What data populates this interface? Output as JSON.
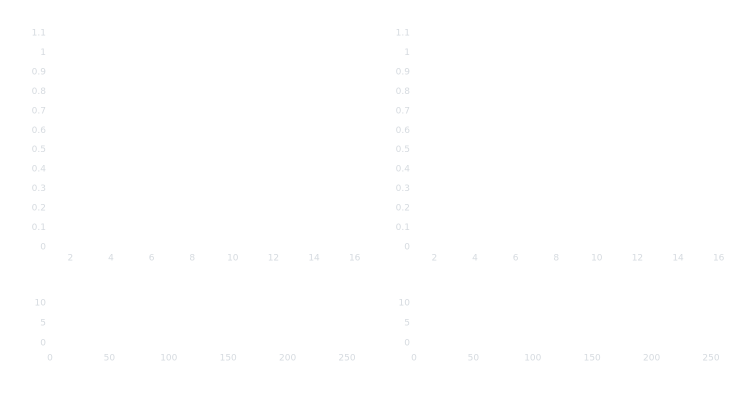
{
  "chart_data": [
    {
      "type": "line",
      "xlim": [
        1,
        17
      ],
      "xticks": [
        2,
        4,
        6,
        8,
        10,
        12,
        14,
        16
      ],
      "ylim": [
        0,
        1.1
      ],
      "yticks": [
        0,
        0.1,
        0.2,
        0.3,
        0.4,
        0.5,
        0.6,
        0.7,
        0.8,
        0.9,
        1,
        1.1
      ],
      "series": []
    },
    {
      "type": "line",
      "xlim": [
        1,
        17
      ],
      "xticks": [
        2,
        4,
        6,
        8,
        10,
        12,
        14,
        16
      ],
      "ylim": [
        0,
        1.1
      ],
      "yticks": [
        0,
        0.1,
        0.2,
        0.3,
        0.4,
        0.5,
        0.6,
        0.7,
        0.8,
        0.9,
        1,
        1.1
      ],
      "series": []
    },
    {
      "type": "line",
      "xlim": [
        0,
        250
      ],
      "xticks": [
        0,
        50,
        100,
        150,
        200,
        250
      ],
      "ylim": [
        0,
        10
      ],
      "yticks": [
        0,
        5,
        10
      ],
      "series": []
    },
    {
      "type": "line",
      "xlim": [
        0,
        250
      ],
      "xticks": [
        0,
        50,
        100,
        150,
        200,
        250
      ],
      "ylim": [
        0,
        10
      ],
      "yticks": [
        0,
        5,
        10
      ],
      "series": []
    }
  ]
}
